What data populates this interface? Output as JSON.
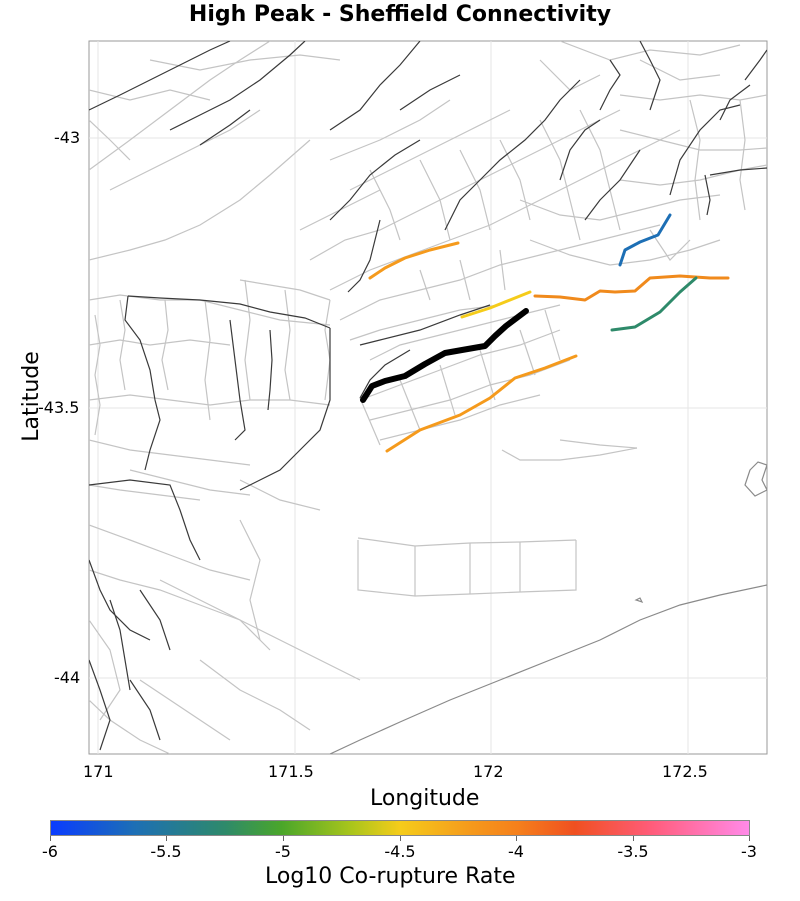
{
  "title": "High Peak - Sheffield Connectivity",
  "axes": {
    "xlabel": "Longitude",
    "ylabel": "Latitude",
    "xticks": [
      "171",
      "171.5",
      "172",
      "172.5"
    ],
    "yticks": [
      "-43",
      "-43.5",
      "-44"
    ],
    "xlim": [
      171.0,
      172.7
    ],
    "ylim": [
      -44.14,
      -42.82
    ],
    "grid": true
  },
  "colorbar": {
    "label": "Log10 Co-rupture Rate",
    "ticks": [
      "-6",
      "-5.5",
      "-5",
      "-4.5",
      "-4",
      "-3.5",
      "-3"
    ],
    "range": [
      -6,
      -3
    ],
    "colors": [
      "#0a3cff",
      "#2e8a6a",
      "#4aa62a",
      "#f5cc1a",
      "#f57f1c",
      "#f05020",
      "#ff8ae8"
    ]
  },
  "chart_data": {
    "type": "map",
    "layers": [
      {
        "name": "fault-network",
        "color": "#bfbfbf"
      },
      {
        "name": "regional-faults",
        "color": "#333333"
      },
      {
        "name": "coastline",
        "color": "#888888"
      }
    ],
    "highlighted_ruptures": [
      {
        "label": "target",
        "color": "#000000",
        "log10_rate": null
      },
      {
        "label": "rupture",
        "color": "#f59a1c",
        "log10_rate": -4.4
      },
      {
        "label": "rupture",
        "color": "#f5cc1a",
        "log10_rate": -4.6
      },
      {
        "label": "rupture",
        "color": "#f57f1c",
        "log10_rate": -4.1
      },
      {
        "label": "rupture",
        "color": "#f08a1c",
        "log10_rate": -4.2
      },
      {
        "label": "rupture",
        "color": "#f59a1c",
        "log10_rate": -4.4
      },
      {
        "label": "rupture",
        "color": "#1d6fb5",
        "log10_rate": -5.7
      },
      {
        "label": "rupture",
        "color": "#2e8a6a",
        "log10_rate": -5.4
      }
    ]
  }
}
